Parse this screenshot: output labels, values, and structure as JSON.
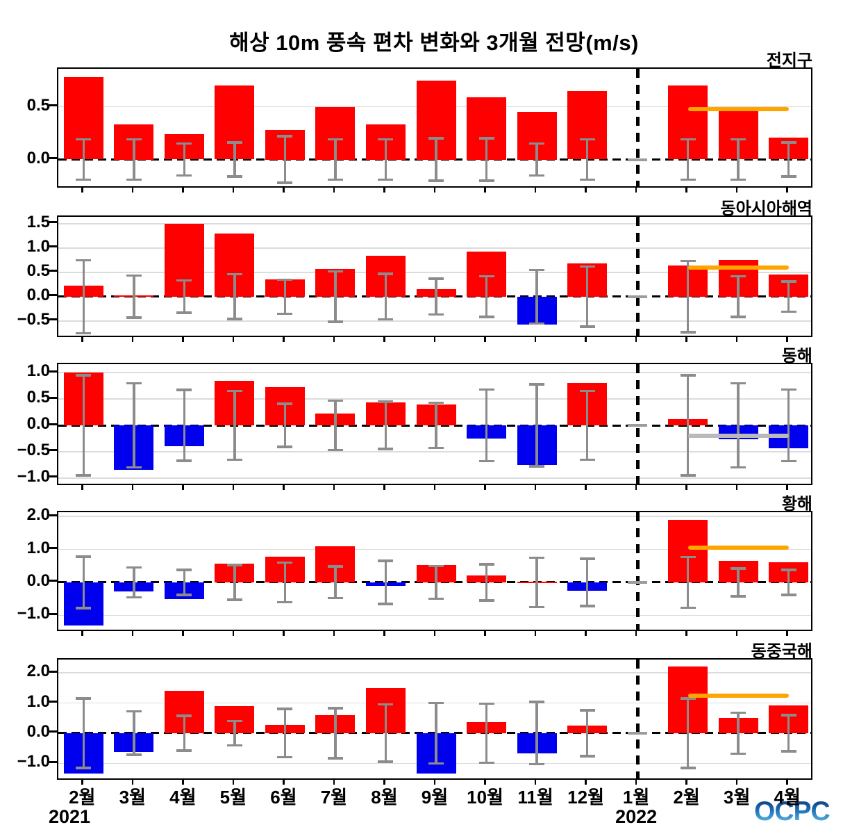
{
  "title": "해상 10m 풍속 편차 변화와 3개월 전망(m/s)",
  "watermark": "OCPC",
  "x_axis": {
    "months": [
      "2월",
      "3월",
      "4월",
      "5월",
      "6월",
      "7월",
      "8월",
      "9월",
      "10월",
      "11월",
      "12월",
      "1월",
      "2월",
      "3월",
      "4월"
    ],
    "year_start": "2021",
    "year_forecast": "2022",
    "divider_slot": 11,
    "forecast_slots": [
      12,
      13,
      14
    ]
  },
  "style": {
    "positive_bar": "#ff0000",
    "negative_bar": "#0000ee",
    "error_bar": "#8c8c8c",
    "no_bar_mark": "#9c9c9c",
    "grid": "#dcdcdc",
    "zero_dash": "#000000",
    "divider": "#000000",
    "forecast_orange": "#ffa500",
    "forecast_gray": "#bababa",
    "logo_blue_dark": "#0a2a6a",
    "logo_blue_light": "#6fd0f2"
  },
  "chart_data": [
    {
      "type": "bar",
      "region": "전지구",
      "key": "global",
      "ylim": [
        -0.28,
        0.86
      ],
      "yticks": [
        {
          "v": 0.5,
          "label": "0.5"
        },
        {
          "v": 0.0,
          "label": "0.0"
        }
      ],
      "gridlines": [
        0.5
      ],
      "values": [
        0.78,
        0.33,
        0.24,
        0.7,
        0.28,
        0.5,
        0.33,
        0.75,
        0.59,
        0.45,
        0.65,
        null,
        0.7,
        0.47,
        0.21
      ],
      "errors": [
        0.19,
        0.19,
        0.15,
        0.16,
        0.22,
        0.19,
        0.19,
        0.2,
        0.2,
        0.15,
        0.19,
        null,
        0.19,
        0.19,
        0.16
      ],
      "forecast_line": {
        "level": 0.48,
        "from_slot": 12,
        "to_slot": 14,
        "color": "#ffa500"
      }
    },
    {
      "type": "bar",
      "region": "동아시아해역",
      "key": "east-asia-sea",
      "ylim": [
        -0.86,
        1.64
      ],
      "yticks": [
        {
          "v": 1.5,
          "label": "1.5"
        },
        {
          "v": 1.0,
          "label": "1.0"
        },
        {
          "v": 0.5,
          "label": "0.5"
        },
        {
          "v": 0.0,
          "label": "0.0"
        },
        {
          "v": -0.5,
          "label": "−0.5"
        }
      ],
      "gridlines": [
        1.5,
        1.0,
        0.5,
        -0.5
      ],
      "values": [
        0.22,
        0.02,
        1.5,
        1.3,
        0.35,
        0.57,
        0.84,
        0.16,
        0.92,
        -0.57,
        0.68,
        null,
        0.64,
        0.75,
        0.45
      ],
      "errors": [
        0.75,
        0.43,
        0.33,
        0.46,
        0.35,
        0.52,
        0.47,
        0.37,
        0.42,
        0.55,
        0.62,
        null,
        0.73,
        0.42,
        0.31
      ],
      "forecast_line": {
        "level": 0.6,
        "from_slot": 12,
        "to_slot": 14,
        "color": "#ffa500"
      }
    },
    {
      "type": "bar",
      "region": "동해",
      "key": "east-sea",
      "ylim": [
        -1.16,
        1.16
      ],
      "yticks": [
        {
          "v": 1.0,
          "label": "1.0"
        },
        {
          "v": 0.5,
          "label": "0.5"
        },
        {
          "v": 0.0,
          "label": "0.0"
        },
        {
          "v": -0.5,
          "label": "−0.5"
        },
        {
          "v": -1.0,
          "label": "−1.0"
        }
      ],
      "gridlines": [
        1.0,
        0.5,
        -0.5,
        -1.0
      ],
      "values": [
        1.0,
        -0.85,
        -0.4,
        0.85,
        0.73,
        0.23,
        0.44,
        0.39,
        -0.25,
        -0.75,
        0.8,
        null,
        0.12,
        -0.27,
        -0.44
      ],
      "errors": [
        0.95,
        0.8,
        0.67,
        0.65,
        0.41,
        0.47,
        0.45,
        0.43,
        0.68,
        0.78,
        0.65,
        null,
        0.95,
        0.8,
        0.68
      ],
      "forecast_line": {
        "level": -0.2,
        "from_slot": 12,
        "to_slot": 14,
        "color": "#bababa"
      }
    },
    {
      "type": "bar",
      "region": "황해",
      "key": "yellow-sea",
      "ylim": [
        -1.52,
        2.13
      ],
      "yticks": [
        {
          "v": 2.0,
          "label": "2.0"
        },
        {
          "v": 1.0,
          "label": "1.0"
        },
        {
          "v": 0.0,
          "label": "0.0"
        },
        {
          "v": -1.0,
          "label": "−1.0"
        }
      ],
      "gridlines": [
        2.0,
        1.0,
        -1.0
      ],
      "values": [
        -1.3,
        -0.28,
        -0.5,
        0.57,
        0.78,
        1.1,
        -0.1,
        0.52,
        0.2,
        0.02,
        -0.25,
        null,
        1.9,
        0.66,
        0.61
      ],
      "errors": [
        0.78,
        0.45,
        0.38,
        0.53,
        0.6,
        0.48,
        0.65,
        0.5,
        0.55,
        0.75,
        0.72,
        null,
        0.77,
        0.42,
        0.38
      ],
      "forecast_line": {
        "level": 1.05,
        "from_slot": 12,
        "to_slot": 14,
        "color": "#ffa500"
      }
    },
    {
      "type": "bar",
      "region": "동중국해",
      "key": "east-china-sea",
      "ylim": [
        -1.59,
        2.44
      ],
      "yticks": [
        {
          "v": 2.0,
          "label": "2.0"
        },
        {
          "v": 1.0,
          "label": "1.0"
        },
        {
          "v": 0.0,
          "label": "0.0"
        },
        {
          "v": -1.0,
          "label": "−1.0"
        }
      ],
      "gridlines": [
        2.0,
        1.0,
        -1.0
      ],
      "values": [
        -1.33,
        -0.62,
        1.4,
        0.9,
        0.27,
        0.6,
        1.5,
        -1.33,
        0.36,
        -0.66,
        0.26,
        null,
        2.2,
        0.5,
        0.93
      ],
      "errors": [
        1.15,
        0.72,
        0.58,
        0.4,
        0.8,
        0.83,
        0.95,
        1.0,
        0.98,
        1.03,
        0.76,
        null,
        1.15,
        0.68,
        0.6
      ],
      "forecast_line": {
        "level": 1.25,
        "from_slot": 12,
        "to_slot": 14,
        "color": "#ffa500"
      }
    }
  ]
}
